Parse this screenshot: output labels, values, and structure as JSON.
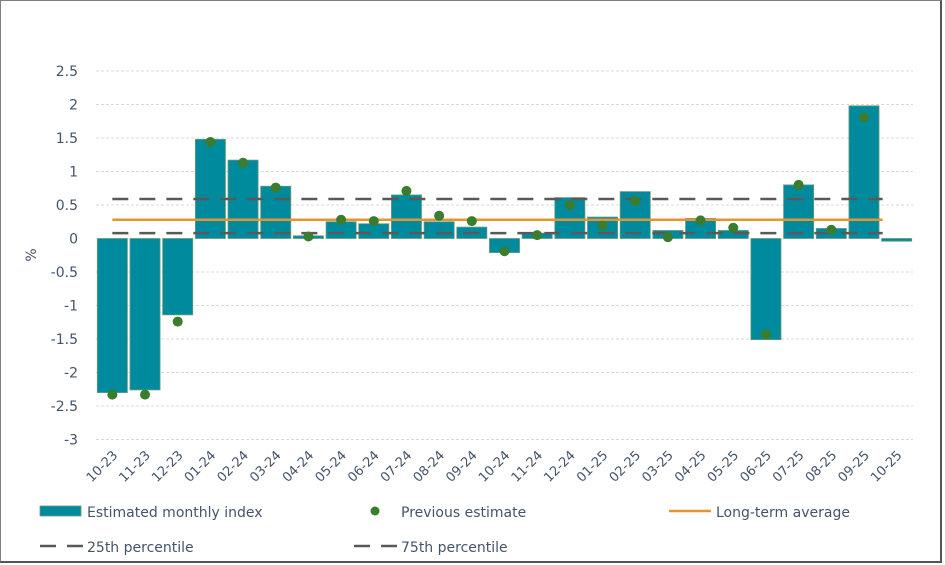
{
  "chart_data": {
    "type": "bar",
    "title": "",
    "xlabel": "",
    "ylabel": "%",
    "ylim": [
      -3,
      2.5
    ],
    "yticks": [
      2.5,
      2,
      1.5,
      1,
      0.5,
      0,
      -0.5,
      -1,
      -1.5,
      -2,
      -2.5,
      -3
    ],
    "ytick_labels": [
      "2.5",
      "2",
      "1.5",
      "1",
      "0.5",
      "0",
      "-0.5",
      "-1",
      "-1.5",
      "-2",
      "-2.5",
      "-3"
    ],
    "grid": "horizontal-dotted",
    "categories": [
      "10-23",
      "11-23",
      "12-23",
      "01-24",
      "02-24",
      "03-24",
      "04-24",
      "05-24",
      "06-24",
      "07-24",
      "08-24",
      "09-24",
      "10-24",
      "11-24",
      "12-24",
      "01-25",
      "02-25",
      "03-25",
      "04-25",
      "05-25",
      "06-25",
      "07-25",
      "08-25",
      "09-25",
      "10-25"
    ],
    "series": [
      {
        "name": "Estimated monthly index",
        "type": "bar",
        "color": "#008a9e",
        "values": [
          -2.3,
          -2.26,
          -1.14,
          1.48,
          1.17,
          0.78,
          0.04,
          0.25,
          0.22,
          0.65,
          0.25,
          0.17,
          -0.21,
          0.08,
          0.61,
          0.32,
          0.7,
          0.12,
          0.3,
          0.12,
          -1.51,
          0.8,
          0.15,
          1.98,
          -0.04
        ]
      },
      {
        "name": "Previous estimate",
        "type": "scatter",
        "color": "#3a7d2e",
        "values": [
          -2.33,
          -2.33,
          -1.24,
          1.44,
          1.13,
          0.76,
          0.03,
          0.28,
          0.26,
          0.71,
          0.34,
          0.26,
          -0.19,
          0.05,
          0.5,
          0.19,
          0.56,
          0.02,
          0.27,
          0.16,
          -1.43,
          0.8,
          0.13,
          1.81,
          null
        ]
      },
      {
        "name": "Long-term average",
        "type": "hline",
        "color": "#e39532",
        "value": 0.28
      },
      {
        "name": "25th percentile",
        "type": "hline-dashed",
        "color": "#595959",
        "value": 0.08
      },
      {
        "name": "75th percentile",
        "type": "hline-dashed",
        "color": "#595959",
        "value": 0.59
      }
    ],
    "legend": {
      "placement": "bottom",
      "entries": [
        {
          "label": "Estimated monthly index",
          "marker": "bar"
        },
        {
          "label": "Previous estimate",
          "marker": "dot"
        },
        {
          "label": "Long-term average",
          "marker": "line"
        },
        {
          "label": "25th percentile",
          "marker": "dashed-line"
        },
        {
          "label": "75th percentile",
          "marker": "dashed-line"
        }
      ]
    }
  }
}
